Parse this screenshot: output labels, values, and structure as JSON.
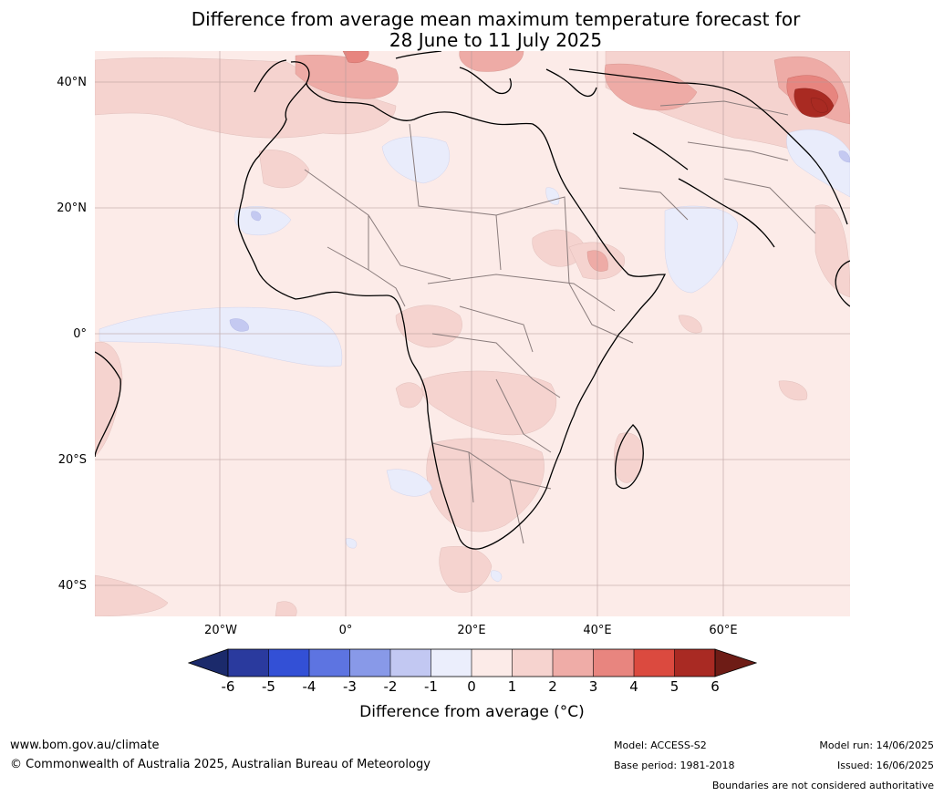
{
  "title": {
    "line1": "Difference from average mean maximum temperature forecast for",
    "line2": "28 June to 11 July 2025"
  },
  "map": {
    "region": "Africa",
    "lat_labels": [
      "40°N",
      "20°N",
      "0°",
      "20°S",
      "40°S"
    ],
    "lon_labels": [
      "20°W",
      "0°",
      "20°E",
      "40°E",
      "60°E"
    ],
    "colors": {
      "ocean_base": "#fcebe8",
      "warm_1_2": "#f5d3cf",
      "warm_2_3": "#eeaba6",
      "warm_3_4": "#e7857f",
      "warm_4_5": "#d94a3d",
      "warm_5_6": "#a92a22",
      "cool_0_1": "#e9ecfb",
      "cool_1_2": "#c4c9f1"
    }
  },
  "colorbar": {
    "ticks": [
      "-6",
      "-5",
      "-4",
      "-3",
      "-2",
      "-1",
      "0",
      "1",
      "2",
      "3",
      "4",
      "5",
      "6"
    ],
    "colors": [
      "#2a3a9e",
      "#3350d6",
      "#5d74e1",
      "#8899e8",
      "#c2c8f2",
      "#ebeefc",
      "#fcebe8",
      "#f6d3cf",
      "#efaca7",
      "#e8857f",
      "#db4a3f",
      "#a92a23"
    ],
    "low_extend_color": "#1b2a6b",
    "high_extend_color": "#6e1c16",
    "label": "Difference from average (°C)"
  },
  "footer": {
    "website": "www.bom.gov.au/climate",
    "copyright": "© Commonwealth of Australia 2025, Australian Bureau of Meteorology",
    "model": "Model: ACCESS-S2",
    "base_period": "Base period: 1981-2018",
    "model_run": "Model run: 14/06/2025",
    "issued": "Issued: 16/06/2025",
    "disclaimer": "Boundaries are not considered authoritative"
  }
}
